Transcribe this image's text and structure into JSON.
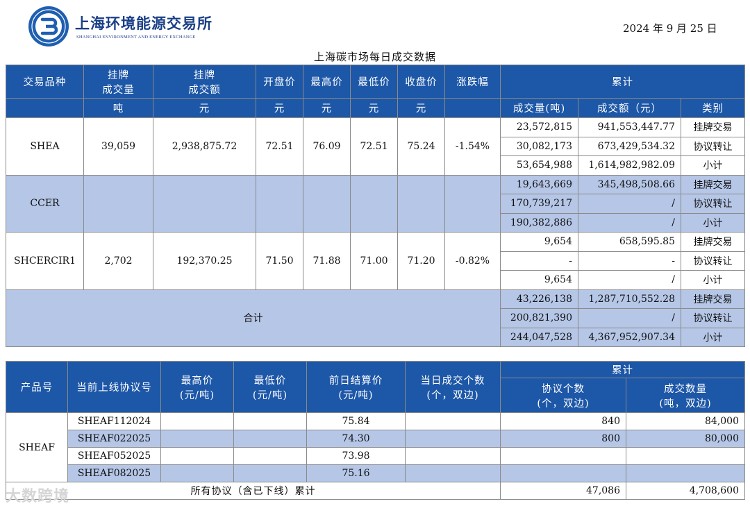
{
  "header": {
    "org_cn": "上海环境能源交易所",
    "org_en": "SHANGHAI ENVIRONMENT AND ENERGY EXCHANGE",
    "date": "2024 年 9 月 25 日",
    "title": "上海碳市场每日成交数据"
  },
  "table1": {
    "headers": {
      "product": "交易品种",
      "listed_volume_l1": "挂牌",
      "listed_volume_l2": "成交量",
      "listed_amount_l1": "挂牌",
      "listed_amount_l2": "成交额",
      "open": "开盘价",
      "high": "最高价",
      "low": "最低价",
      "close": "收盘价",
      "change": "涨跌幅",
      "cumulative": "累计"
    },
    "units": {
      "volume": "吨",
      "amount": "元",
      "open": "元",
      "high": "元",
      "low": "元",
      "close": "元",
      "cum_volume": "成交量(吨)",
      "cum_amount": "成交额（元）",
      "cum_type": "类别"
    },
    "rows": [
      {
        "product": "SHEA",
        "volume": "39,059",
        "amount": "2,938,875.72",
        "open": "72.51",
        "high": "76.09",
        "low": "72.51",
        "close": "75.24",
        "change": "-1.54%",
        "sub": [
          {
            "volume": "23,572,815",
            "amount": "941,553,447.77",
            "type": "挂牌交易"
          },
          {
            "volume": "30,082,173",
            "amount": "673,429,534.32",
            "type": "协议转让"
          },
          {
            "volume": "53,654,988",
            "amount": "1,614,982,982.09",
            "type": "小计"
          }
        ]
      },
      {
        "product": "CCER",
        "volume": "",
        "amount": "",
        "open": "",
        "high": "",
        "low": "",
        "close": "",
        "change": "",
        "sub": [
          {
            "volume": "19,643,669",
            "amount": "345,498,508.66",
            "type": "挂牌交易"
          },
          {
            "volume": "170,739,217",
            "amount": "/",
            "type": "协议转让"
          },
          {
            "volume": "190,382,886",
            "amount": "/",
            "type": "小计"
          }
        ]
      },
      {
        "product": "SHCERCIR1",
        "volume": "2,702",
        "amount": "192,370.25",
        "open": "71.50",
        "high": "71.88",
        "low": "71.00",
        "close": "71.20",
        "change": "-0.82%",
        "sub": [
          {
            "volume": "9,654",
            "amount": "658,595.85",
            "type": "挂牌交易"
          },
          {
            "volume": "-",
            "amount": "-",
            "type": "协议转让"
          },
          {
            "volume": "9,654",
            "amount": "/",
            "type": "小计"
          }
        ]
      }
    ],
    "total": {
      "label": "合计",
      "sub": [
        {
          "volume": "43,226,138",
          "amount": "1,287,710,552.28",
          "type": "挂牌交易"
        },
        {
          "volume": "200,821,390",
          "amount": "/",
          "type": "协议转让"
        },
        {
          "volume": "244,047,528",
          "amount": "4,367,952,907.34",
          "type": "小计"
        }
      ]
    }
  },
  "table2": {
    "headers": {
      "product_no": "产品号",
      "contract": "当前上线协议号",
      "high_l1": "最高价",
      "high_l2": "(元/吨)",
      "low_l1": "最低价",
      "low_l2": "(元/吨)",
      "settle_l1": "前日结算价",
      "settle_l2": "(元/吨)",
      "count_l1": "当日成交个数",
      "count_l2": "(个，双边)",
      "cumulative": "累计",
      "cum_count_l1": "协议个数",
      "cum_count_l2": "(个，双边)",
      "cum_qty_l1": "成交数量",
      "cum_qty_l2": "(吨，双边)"
    },
    "product": "SHEAF",
    "rows": [
      {
        "contract": "SHEAF112024",
        "high": "",
        "low": "",
        "settle": "75.84",
        "count": "",
        "cum_count": "840",
        "cum_qty": "84,000"
      },
      {
        "contract": "SHEAF022025",
        "high": "",
        "low": "",
        "settle": "74.30",
        "count": "",
        "cum_count": "800",
        "cum_qty": "80,000"
      },
      {
        "contract": "SHEAF052025",
        "high": "",
        "low": "",
        "settle": "73.98",
        "count": "",
        "cum_count": "",
        "cum_qty": ""
      },
      {
        "contract": "SHEAF082025",
        "high": "",
        "low": "",
        "settle": "75.16",
        "count": "",
        "cum_count": "",
        "cum_qty": ""
      }
    ],
    "total": {
      "label": "所有协议（含已下线）累计",
      "cum_count": "47,086",
      "cum_qty": "4,708,600"
    }
  },
  "watermark": "大数跨境",
  "colors": {
    "header_blue": "#1d57a7",
    "row_shade": "#b5c6e6",
    "brand_blue": "#1a3f86"
  }
}
